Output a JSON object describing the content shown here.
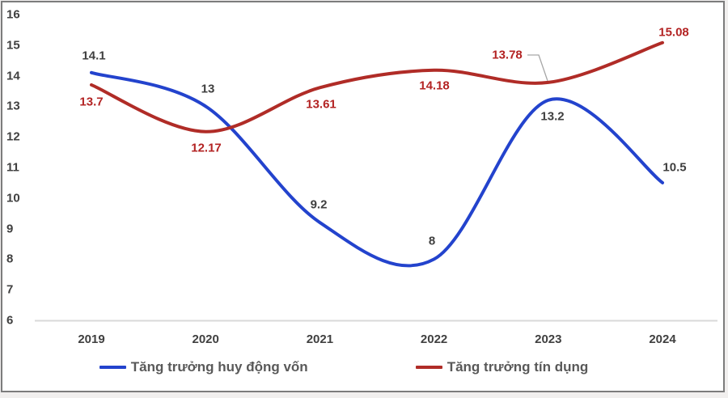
{
  "chart_data": {
    "type": "line",
    "categories": [
      "2019",
      "2020",
      "2021",
      "2022",
      "2023",
      "2024"
    ],
    "series": [
      {
        "name": "Tăng trưởng huy động vốn",
        "color": "#2343cd",
        "label_color": "#3f3f3f",
        "values": [
          14.1,
          13,
          9.2,
          8,
          13.2,
          10.5
        ],
        "labels": [
          "14.1",
          "13",
          "9.2",
          "8",
          "13.2",
          "10.5"
        ]
      },
      {
        "name": "Tăng trưởng tín dụng",
        "color": "#b02c27",
        "label_color": "#b32323",
        "values": [
          13.7,
          12.17,
          13.61,
          14.18,
          13.78,
          15.08
        ],
        "labels": [
          "13.7",
          "12.17",
          "13.61",
          "14.18",
          "13.78",
          "15.08"
        ]
      }
    ],
    "ylim": [
      6,
      16
    ],
    "ytick_labels": [
      "16",
      "15",
      "14",
      "13",
      "12",
      "11",
      "10",
      "9",
      "8",
      "7",
      "6"
    ],
    "grid": "off",
    "legend_position": "bottom",
    "line_style": "smooth",
    "colors": {
      "axis_line": "#d9d9d9",
      "tick_text": "#404040",
      "legend_text": "#595959",
      "leader_line": "#a6a6a6",
      "frame_border": "#7c7c7c"
    }
  }
}
